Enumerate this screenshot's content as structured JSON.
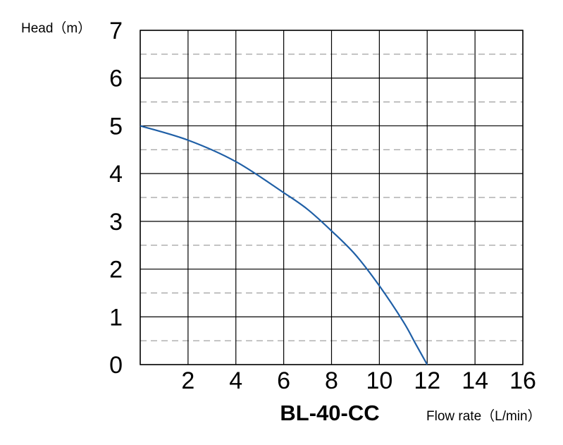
{
  "chart_data": {
    "type": "line",
    "title": "BL-40-CC",
    "xlabel": "Flow rate（L/min）",
    "ylabel": "Head（m）",
    "xlim": [
      0,
      16
    ],
    "ylim": [
      0,
      7
    ],
    "x_ticks": [
      0,
      2,
      4,
      6,
      8,
      10,
      12,
      14,
      16
    ],
    "x_tick_labels": [
      "",
      "2",
      "4",
      "6",
      "8",
      "10",
      "12",
      "14",
      "16"
    ],
    "y_ticks": [
      0,
      1,
      2,
      3,
      4,
      5,
      6,
      7
    ],
    "y_tick_labels": [
      "0",
      "1",
      "2",
      "3",
      "4",
      "5",
      "6",
      "7"
    ],
    "grid": {
      "major": true,
      "minor_dashed_y": true
    },
    "series": [
      {
        "color": "#1f5fa6",
        "x": [
          0,
          2,
          4,
          6,
          7,
          8,
          9,
          10,
          11,
          11.5,
          12
        ],
        "y": [
          5.0,
          4.7,
          4.25,
          3.6,
          3.25,
          2.8,
          2.3,
          1.65,
          0.9,
          0.45,
          0.0
        ]
      }
    ]
  }
}
